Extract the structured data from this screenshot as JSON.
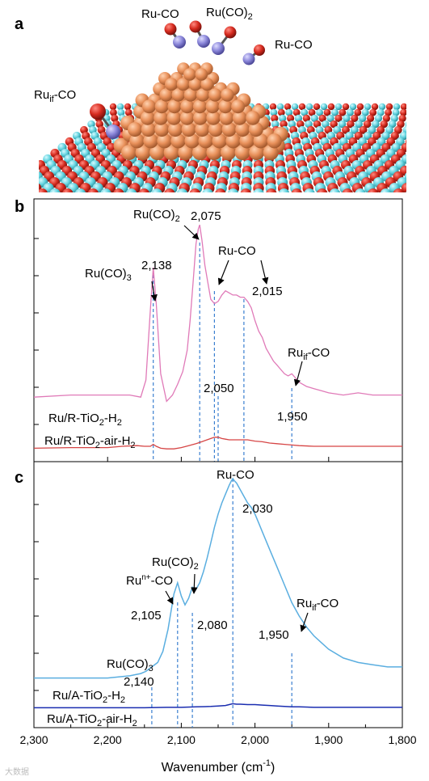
{
  "panels": {
    "a": "a",
    "b": "b",
    "c": "c"
  },
  "structure_labels": {
    "ru_co_left": "Ru-CO",
    "ru_co2": "Ru(CO)",
    "ru_co2_sub": "2",
    "ru_co_right": "Ru-CO",
    "ruif_main": "Ru",
    "ruif_sub": "if",
    "ruif_tail": "-CO"
  },
  "colors": {
    "b_upper": "#e07ab8",
    "b_lower": "#d64545",
    "c_upper": "#5aaee0",
    "c_lower": "#1a2db0",
    "dash": "#3a7fd0",
    "support_O": "#d62b1f",
    "support_Ti": "#63d3df",
    "ru": "#e8905a",
    "co_C": "#8a86d9",
    "co_O": "#cc1f1f"
  },
  "watermark": "大数据",
  "chart_data": [
    {
      "panel": "b",
      "type": "line",
      "xlabel_main": "Wavenumber (cm",
      "xlabel_sup": "-1",
      "xlabel_end": ")",
      "xlim": [
        2300,
        1800
      ],
      "series": [
        {
          "name": "Ru/R-TiO2-H2",
          "label_main": "Ru/R-TiO",
          "label_sub": "2",
          "label_tail": "-H",
          "label_sub2": "2",
          "x": [
            2300,
            2250,
            2200,
            2170,
            2155,
            2148,
            2142,
            2138,
            2134,
            2128,
            2120,
            2112,
            2105,
            2098,
            2092,
            2088,
            2084,
            2080,
            2077,
            2075,
            2072,
            2068,
            2064,
            2060,
            2055,
            2050,
            2045,
            2040,
            2035,
            2030,
            2025,
            2020,
            2015,
            2010,
            2005,
            2000,
            1995,
            1990,
            1985,
            1980,
            1975,
            1970,
            1965,
            1960,
            1955,
            1950,
            1945,
            1940,
            1930,
            1920,
            1910,
            1900,
            1880,
            1860,
            1840,
            1820,
            1800
          ],
          "y": [
            14,
            15,
            15,
            15,
            14,
            22,
            55,
            75,
            58,
            25,
            12,
            15,
            20,
            26,
            36,
            50,
            68,
            86,
            93,
            95,
            88,
            76,
            68,
            60,
            58,
            59,
            62,
            64,
            63,
            62,
            62,
            61,
            61,
            59,
            56,
            50,
            45,
            42,
            37,
            34,
            31,
            29,
            27,
            25,
            24,
            25,
            23,
            21,
            19,
            18,
            17,
            16,
            15,
            16,
            15,
            15,
            15
          ]
        },
        {
          "name": "Ru/R-TiO2-air-H2",
          "label_main": "Ru/R-TiO",
          "label_sub": "2",
          "label_tail": "-air-H",
          "label_sub2": "2",
          "x": [
            2300,
            2250,
            2200,
            2180,
            2160,
            2150,
            2142,
            2138,
            2134,
            2128,
            2120,
            2110,
            2100,
            2090,
            2080,
            2075,
            2070,
            2065,
            2060,
            2055,
            2050,
            2045,
            2040,
            2035,
            2030,
            2020,
            2010,
            2000,
            1990,
            1980,
            1970,
            1960,
            1950,
            1940,
            1920,
            1900,
            1880,
            1860,
            1840,
            1820,
            1800
          ],
          "y": [
            7,
            8,
            8,
            10,
            11,
            10,
            10,
            13,
            10,
            7,
            6,
            6,
            8,
            11,
            14,
            16,
            18,
            20,
            22,
            24,
            24,
            22,
            21,
            20,
            20,
            20,
            20,
            18,
            17,
            15,
            14,
            13,
            12,
            11,
            10,
            10,
            10,
            10,
            10,
            10,
            10
          ]
        }
      ],
      "annotations": [
        {
          "main": "Ru(CO)",
          "sub": "3",
          "tail": ""
        },
        {
          "main": "2,138",
          "sub": "",
          "tail": ""
        },
        {
          "main": "Ru(CO)",
          "sub": "2",
          "tail": ""
        },
        {
          "main": "2,075",
          "sub": "",
          "tail": ""
        },
        {
          "main": "Ru-CO",
          "sub": "",
          "tail": ""
        },
        {
          "main": "2,015",
          "sub": "",
          "tail": ""
        },
        {
          "main": "Ru",
          "sub": "if",
          "tail": "-CO"
        },
        {
          "main": "2,050",
          "sub": "",
          "tail": ""
        },
        {
          "main": "1,950",
          "sub": "",
          "tail": ""
        }
      ],
      "dashed_lines_x": [
        2138,
        2075,
        2055,
        2050,
        2015,
        1950
      ]
    },
    {
      "panel": "c",
      "type": "line",
      "xlabel_main": "Wavenumber (cm",
      "xlabel_sup": "-1",
      "xlabel_end": ")",
      "xlim": [
        2300,
        1800
      ],
      "xticks": [
        "2,300",
        "2,200",
        "2,100",
        "2,000",
        "1,900",
        "1,800"
      ],
      "xtick_values": [
        2300,
        2200,
        2100,
        2000,
        1900,
        1800
      ],
      "series": [
        {
          "name": "Ru/A-TiO2-H2",
          "label_main": "Ru/A-TiO",
          "label_sub": "2",
          "label_tail": "-H",
          "label_sub2": "2",
          "x": [
            2300,
            2250,
            2200,
            2170,
            2155,
            2148,
            2140,
            2132,
            2125,
            2118,
            2110,
            2105,
            2100,
            2095,
            2090,
            2085,
            2080,
            2075,
            2070,
            2065,
            2060,
            2055,
            2050,
            2045,
            2040,
            2035,
            2032,
            2030,
            2028,
            2025,
            2020,
            2015,
            2010,
            2005,
            2000,
            1995,
            1990,
            1980,
            1970,
            1960,
            1950,
            1940,
            1930,
            1920,
            1910,
            1900,
            1880,
            1860,
            1840,
            1820,
            1800
          ],
          "y": [
            10,
            10,
            10,
            11,
            12,
            13,
            15,
            17,
            22,
            32,
            48,
            53,
            47,
            43,
            46,
            51,
            50,
            53,
            58,
            64,
            71,
            78,
            84,
            89,
            93,
            97,
            99,
            100,
            99,
            98,
            95,
            92,
            89,
            87,
            84,
            80,
            76,
            68,
            60,
            52,
            44,
            38,
            33,
            29,
            26,
            23,
            19,
            17,
            16,
            15,
            15
          ]
        },
        {
          "name": "Ru/A-TiO2-air-H2",
          "label_main": "Ru/A-TiO",
          "label_sub": "2",
          "label_tail": "-air-H",
          "label_sub2": "2",
          "x": [
            2300,
            2250,
            2200,
            2150,
            2120,
            2100,
            2080,
            2060,
            2050,
            2040,
            2035,
            2030,
            2025,
            2020,
            2010,
            2000,
            1990,
            1980,
            1970,
            1960,
            1950,
            1940,
            1920,
            1900,
            1880,
            1860,
            1840,
            1820,
            1800
          ],
          "y": [
            1,
            1,
            1,
            1,
            2,
            2,
            3,
            4,
            5,
            6,
            8,
            10,
            9,
            9,
            8,
            8,
            7,
            6,
            5,
            4,
            3,
            3,
            2,
            2,
            2,
            2,
            2,
            2,
            2
          ]
        }
      ],
      "annotations": [
        {
          "main": "Ru-CO",
          "sub": "",
          "tail": ""
        },
        {
          "main": "2,030",
          "sub": "",
          "tail": ""
        },
        {
          "main": "Ru(CO)",
          "sub": "2",
          "tail": ""
        },
        {
          "main": "Ru",
          "sup": "n+",
          "tail": "-CO"
        },
        {
          "main": "2,105",
          "sub": "",
          "tail": ""
        },
        {
          "main": "2,080",
          "sub": "",
          "tail": ""
        },
        {
          "main": "Ru",
          "sub": "if",
          "tail": "-CO"
        },
        {
          "main": "1,950",
          "sub": "",
          "tail": ""
        },
        {
          "main": "Ru(CO)",
          "sub": "3",
          "tail": ""
        },
        {
          "main": "2,140",
          "sub": "",
          "tail": ""
        }
      ],
      "dashed_lines_x": [
        2140,
        2105,
        2085,
        2030,
        1950
      ]
    }
  ]
}
